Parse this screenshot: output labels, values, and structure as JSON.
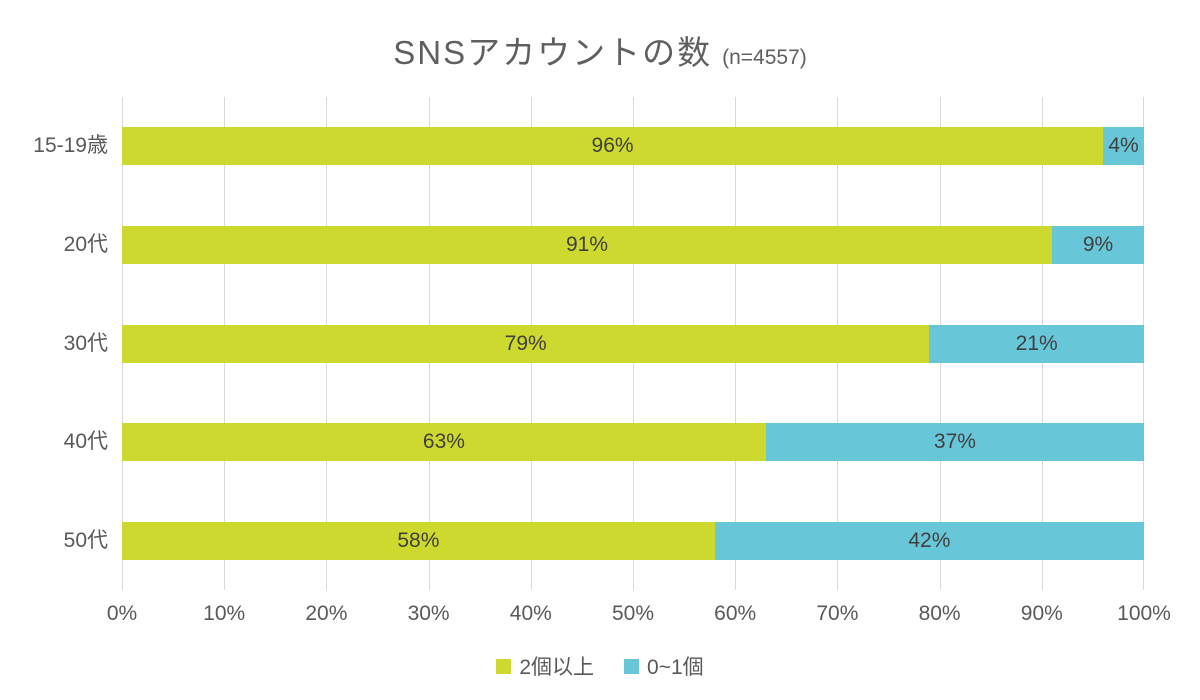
{
  "title": {
    "main": "SNSアカウントの数",
    "sample_size": "(n=4557)"
  },
  "chart_data": {
    "type": "bar",
    "orientation": "horizontal",
    "stacked": true,
    "title": "SNSアカウントの数 (n=4557)",
    "categories": [
      "15-19歳",
      "20代",
      "30代",
      "40代",
      "50代"
    ],
    "series": [
      {
        "name": "2個以上",
        "color": "#cdd92f",
        "values": [
          96,
          91,
          79,
          63,
          58
        ]
      },
      {
        "name": "0~1個",
        "color": "#68c6d9",
        "values": [
          4,
          9,
          21,
          37,
          42
        ]
      }
    ],
    "data_labels": [
      "96%",
      "91%",
      "79%",
      "63%",
      "58%",
      "4%",
      "9%",
      "21%",
      "37%",
      "42%"
    ],
    "value_suffix": "%",
    "xlim": [
      0,
      100
    ],
    "x_ticks": [
      "0%",
      "10%",
      "20%",
      "30%",
      "40%",
      "50%",
      "60%",
      "70%",
      "80%",
      "90%",
      "100%"
    ],
    "grid": "vertical",
    "legend_position": "bottom"
  },
  "colors": {
    "background": "#ffffff",
    "grid_line": "#d9d9d9",
    "axis_text": "#595959",
    "data_label_text": "#404040",
    "title_text": "#5f5f5f"
  }
}
